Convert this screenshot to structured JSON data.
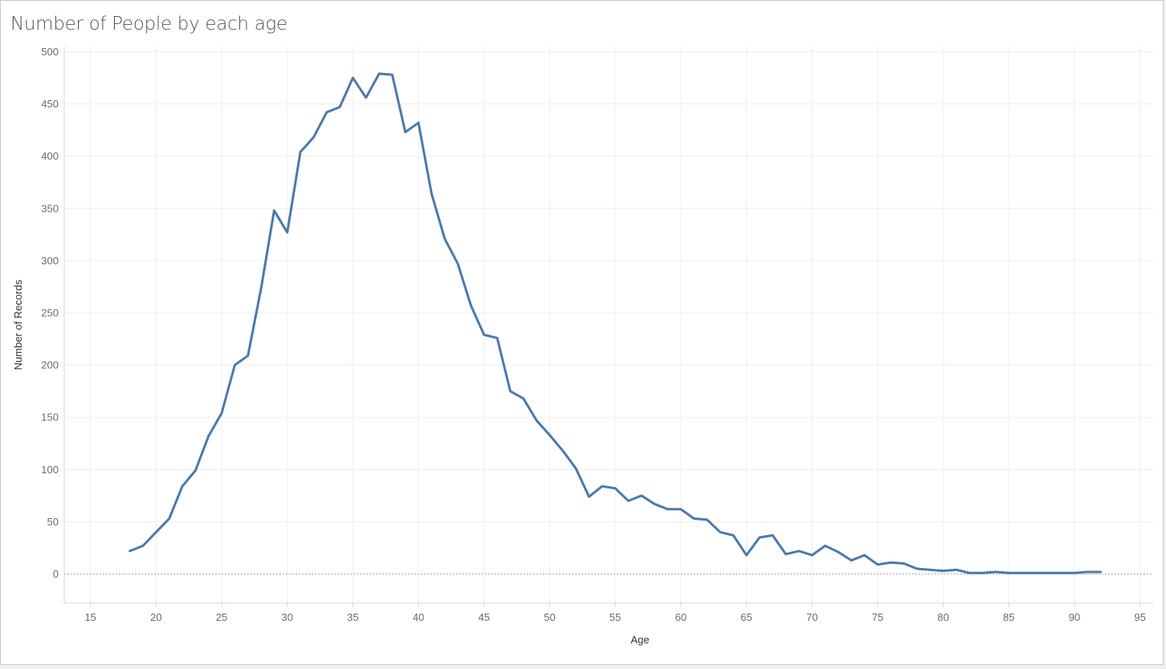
{
  "chart_data": {
    "type": "line",
    "title": "Number of People by each age",
    "xlabel": "Age",
    "ylabel": "Number of Records",
    "xlim": [
      13,
      96
    ],
    "ylim": [
      -28,
      505
    ],
    "xticks": [
      15,
      20,
      25,
      30,
      35,
      40,
      45,
      50,
      55,
      60,
      65,
      70,
      75,
      80,
      85,
      90,
      95
    ],
    "yticks": [
      0,
      50,
      100,
      150,
      200,
      250,
      300,
      350,
      400,
      450,
      500
    ],
    "grid": true,
    "zero_line": "dotted",
    "line_color": "#4e79a7",
    "series": [
      {
        "x": [
          18,
          19,
          20,
          21,
          22,
          23,
          24,
          25,
          26,
          27,
          28,
          29,
          30,
          31,
          32,
          33,
          34,
          35,
          36,
          37,
          38,
          39,
          40,
          41,
          42,
          43,
          44,
          45,
          46,
          47,
          48,
          49,
          50,
          51,
          52,
          53,
          54,
          55,
          56,
          57,
          58,
          59,
          60,
          61,
          62,
          63,
          64,
          65,
          66,
          67,
          68,
          69,
          70,
          71,
          72,
          73,
          74,
          75,
          76,
          77,
          78,
          79,
          80,
          81,
          82,
          83,
          84,
          85,
          86,
          87,
          88,
          89,
          90,
          91,
          92
        ],
        "y": [
          22,
          27,
          40,
          53,
          84,
          99,
          132,
          154,
          200,
          209,
          273,
          348,
          327,
          404,
          418,
          442,
          447,
          475,
          456,
          479,
          478,
          423,
          432,
          364,
          321,
          297,
          257,
          229,
          226,
          175,
          168,
          147,
          133,
          118,
          101,
          74,
          84,
          82,
          70,
          75,
          67,
          62,
          62,
          53,
          52,
          40,
          37,
          18,
          35,
          37,
          19,
          22,
          18,
          27,
          21,
          13,
          18,
          9,
          11,
          10,
          5,
          4,
          3,
          4,
          1,
          1,
          2,
          1,
          1,
          1,
          1,
          1,
          1,
          2,
          2
        ]
      }
    ]
  }
}
